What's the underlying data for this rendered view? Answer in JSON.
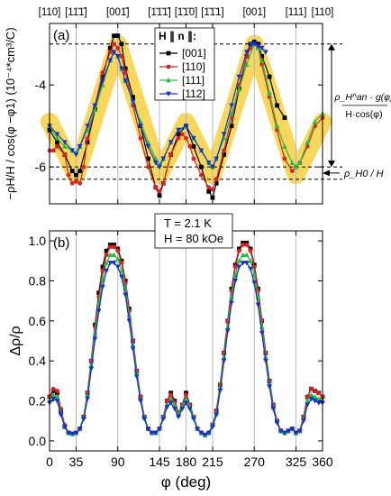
{
  "chart_data": [
    {
      "type": "line",
      "panel_label": "(a)",
      "ylabel": "−ρH/H / cos(φ −φ1) (10⁻⁴*cm³/C)",
      "ylim": [
        -6.9,
        -2.5
      ],
      "xlim": [
        0,
        360
      ],
      "y_ticks": [
        -4,
        -6
      ],
      "x_ticks": [
        0,
        35,
        90,
        145,
        180,
        215,
        270,
        325,
        360
      ],
      "top_direction_labels": [
        "[110]",
        "[11̄1̄]",
        "[001̄]",
        "[1̄1̄1̄]",
        "[1̄1̄0]",
        "[1̄1̄1]",
        "[001]",
        "[111]",
        "[110]"
      ],
      "top_direction_positions": [
        0,
        35,
        90,
        145,
        180,
        215,
        270,
        325,
        360
      ],
      "legend_title": "H ∥ n ∥:",
      "legend_position": "top-center",
      "series": [
        {
          "name": "[001]",
          "color": "#000000",
          "marker": "square",
          "x": [
            0,
            10,
            20,
            30,
            35,
            40,
            50,
            60,
            70,
            80,
            85,
            90,
            95,
            100,
            110,
            120,
            130,
            140,
            145,
            150,
            160,
            170,
            180,
            190,
            200,
            210,
            215,
            220,
            230,
            240,
            250,
            260,
            265,
            270,
            275,
            280,
            290,
            300,
            310
          ],
          "y": [
            -5.1,
            -5.4,
            -5.7,
            -6.1,
            -6.2,
            -6.1,
            -5.4,
            -4.6,
            -3.8,
            -3.1,
            -2.8,
            -2.8,
            -3.0,
            -3.6,
            -4.3,
            -5.0,
            -5.8,
            -6.5,
            -6.7,
            -6.4,
            -5.7,
            -5.2,
            -5.0,
            -5.5,
            -6.0,
            -6.6,
            -6.75,
            -6.4,
            -5.7,
            -5.0,
            -4.1,
            -3.3,
            -3.0,
            -2.95,
            -3.0,
            -3.3,
            -3.8,
            -4.5,
            -4.8
          ]
        },
        {
          "name": "[110]",
          "color": "#e02020",
          "marker": "circle",
          "x": [
            0,
            5,
            10,
            20,
            25,
            30,
            35,
            40,
            45,
            50,
            60,
            70,
            80,
            85,
            90,
            95,
            100,
            110,
            120,
            130,
            140,
            145,
            150,
            160,
            170,
            175,
            180,
            185,
            190,
            200,
            210,
            215,
            220,
            230,
            240,
            250,
            260,
            265,
            270,
            275,
            280,
            290,
            300,
            310,
            320,
            325,
            330,
            340,
            350,
            360
          ],
          "y": [
            -5.6,
            -5.6,
            -5.5,
            -5.7,
            -6.2,
            -6.4,
            -6.35,
            -6.4,
            -6.0,
            -5.3,
            -4.5,
            -3.7,
            -3.2,
            -3.0,
            -3.1,
            -3.3,
            -3.7,
            -4.5,
            -5.3,
            -6.0,
            -6.5,
            -6.6,
            -6.4,
            -5.7,
            -5.3,
            -5.2,
            -5.3,
            -5.5,
            -5.8,
            -6.2,
            -6.5,
            -6.55,
            -6.3,
            -5.6,
            -4.8,
            -4.0,
            -3.3,
            -3.1,
            -3.0,
            -3.1,
            -3.5,
            -4.3,
            -5.1,
            -5.8,
            -6.1,
            -6.0,
            -5.9,
            -5.5,
            -5.0,
            -4.8
          ]
        },
        {
          "name": "[111]",
          "color": "#20c040",
          "marker": "triangle-up",
          "x": [
            0,
            10,
            20,
            30,
            35,
            40,
            50,
            60,
            70,
            80,
            85,
            90,
            95,
            100,
            110,
            120,
            130,
            140,
            145,
            150,
            160,
            170,
            180,
            190,
            200,
            210,
            215,
            220,
            230,
            240,
            250,
            260,
            270,
            275,
            280,
            290,
            300,
            310,
            320,
            325,
            330,
            340,
            350,
            360
          ],
          "y": [
            -5.0,
            -5.3,
            -5.5,
            -5.6,
            -5.65,
            -5.5,
            -5.1,
            -4.6,
            -4.0,
            -3.4,
            -3.2,
            -3.3,
            -3.6,
            -3.9,
            -4.4,
            -4.9,
            -5.4,
            -5.8,
            -5.95,
            -5.8,
            -5.4,
            -5.1,
            -5.0,
            -5.3,
            -5.6,
            -5.9,
            -6.0,
            -5.8,
            -5.3,
            -4.7,
            -4.1,
            -3.5,
            -3.0,
            -3.1,
            -3.4,
            -4.2,
            -5.0,
            -5.5,
            -5.9,
            -6.0,
            -5.9,
            -5.4,
            -4.9,
            -4.7
          ]
        },
        {
          "name": "[112]",
          "color": "#1530d0",
          "marker": "triangle-down",
          "x": [
            0,
            10,
            20,
            30,
            35,
            40,
            50,
            60,
            70,
            80,
            85,
            90,
            95,
            100,
            110,
            120,
            130,
            140,
            145,
            150,
            160,
            170,
            180,
            190,
            200,
            210,
            215,
            220,
            230,
            240,
            250,
            260,
            265,
            270,
            275,
            280,
            285
          ],
          "y": [
            -5.0,
            -5.2,
            -5.4,
            -5.6,
            -5.7,
            -5.5,
            -5.0,
            -4.5,
            -3.9,
            -3.4,
            -3.2,
            -3.3,
            -3.6,
            -3.9,
            -4.4,
            -5.0,
            -5.5,
            -5.9,
            -6.0,
            -5.8,
            -5.4,
            -5.1,
            -5.0,
            -5.3,
            -5.6,
            -5.9,
            -6.0,
            -5.8,
            -5.2,
            -4.5,
            -3.8,
            -3.2,
            -3.0,
            -3.0,
            -3.05,
            -3.1,
            -3.2
          ]
        }
      ],
      "highlight_band": {
        "color": "#f7d040",
        "x": [
          0,
          35,
          90,
          145,
          180,
          215,
          270,
          325,
          360
        ],
        "y": [
          -4.9,
          -6.2,
          -3.0,
          -6.2,
          -4.9,
          -6.2,
          -3.0,
          -6.2,
          -4.9
        ]
      },
      "dashed_lines_y": [
        -3.0,
        -6.0,
        -6.3
      ],
      "annotations": {
        "top_bracket": "ρ_H^an · g(φ)",
        "bottom_bracket": "H·cos(φ)",
        "arrow_label": "ρ_H0 / H"
      }
    },
    {
      "type": "line",
      "panel_label": "(b)",
      "ylabel": "Δρ/ρ",
      "xlabel": "φ (deg)",
      "ylim": [
        -0.05,
        1.05
      ],
      "xlim": [
        0,
        360
      ],
      "y_ticks": [
        0.0,
        0.2,
        0.4,
        0.6,
        0.8,
        1.0
      ],
      "x_ticks": [
        0,
        35,
        90,
        145,
        180,
        215,
        270,
        325,
        360
      ],
      "x": [
        0,
        5,
        10,
        15,
        20,
        25,
        30,
        35,
        40,
        45,
        50,
        55,
        60,
        65,
        70,
        75,
        80,
        85,
        90,
        95,
        100,
        105,
        110,
        115,
        120,
        125,
        130,
        135,
        140,
        145,
        150,
        155,
        160,
        165,
        170,
        175,
        180,
        185,
        190,
        195,
        200,
        205,
        210,
        215,
        220,
        225,
        230,
        235,
        240,
        245,
        250,
        255,
        260,
        265,
        270,
        275,
        280,
        285,
        290,
        295,
        300,
        305,
        310,
        315,
        320,
        325,
        330,
        335,
        340,
        345,
        350,
        355,
        360
      ],
      "series": [
        {
          "name": "[001]",
          "color": "#000000",
          "y": [
            0.22,
            0.25,
            0.24,
            0.15,
            0.07,
            0.04,
            0.035,
            0.04,
            0.06,
            0.12,
            0.24,
            0.4,
            0.58,
            0.74,
            0.87,
            0.95,
            0.98,
            0.98,
            0.96,
            0.9,
            0.8,
            0.66,
            0.5,
            0.35,
            0.22,
            0.12,
            0.06,
            0.04,
            0.04,
            0.06,
            0.12,
            0.2,
            0.24,
            0.2,
            0.14,
            0.18,
            0.24,
            0.18,
            0.12,
            0.06,
            0.04,
            0.03,
            0.04,
            0.08,
            0.15,
            0.28,
            0.44,
            0.6,
            0.76,
            0.88,
            0.96,
            0.99,
            0.99,
            0.96,
            0.88,
            0.76,
            0.6,
            0.44,
            0.3,
            0.18,
            0.1,
            0.05,
            0.04,
            0.05,
            0.06,
            0.04,
            0.05,
            0.12,
            0.22,
            0.26,
            0.25,
            0.24,
            0.22
          ]
        },
        {
          "name": "[110]",
          "color": "#e02020",
          "y": [
            0.22,
            0.26,
            0.25,
            0.16,
            0.08,
            0.04,
            0.035,
            0.04,
            0.06,
            0.12,
            0.24,
            0.4,
            0.57,
            0.72,
            0.85,
            0.93,
            0.97,
            0.97,
            0.95,
            0.89,
            0.79,
            0.65,
            0.5,
            0.35,
            0.22,
            0.12,
            0.06,
            0.04,
            0.04,
            0.06,
            0.12,
            0.2,
            0.23,
            0.19,
            0.14,
            0.18,
            0.23,
            0.18,
            0.12,
            0.06,
            0.04,
            0.03,
            0.04,
            0.08,
            0.15,
            0.28,
            0.44,
            0.6,
            0.75,
            0.87,
            0.95,
            0.98,
            0.98,
            0.95,
            0.87,
            0.75,
            0.6,
            0.44,
            0.3,
            0.18,
            0.1,
            0.05,
            0.04,
            0.05,
            0.06,
            0.04,
            0.05,
            0.12,
            0.22,
            0.26,
            0.25,
            0.24,
            0.22
          ]
        },
        {
          "name": "[111]",
          "color": "#20c040",
          "y": [
            0.2,
            0.23,
            0.22,
            0.14,
            0.07,
            0.04,
            0.035,
            0.04,
            0.06,
            0.12,
            0.23,
            0.38,
            0.54,
            0.69,
            0.81,
            0.89,
            0.93,
            0.93,
            0.91,
            0.85,
            0.76,
            0.63,
            0.48,
            0.34,
            0.21,
            0.12,
            0.06,
            0.04,
            0.04,
            0.06,
            0.12,
            0.18,
            0.21,
            0.18,
            0.13,
            0.17,
            0.21,
            0.17,
            0.12,
            0.06,
            0.04,
            0.03,
            0.04,
            0.08,
            0.14,
            0.27,
            0.42,
            0.57,
            0.72,
            0.83,
            0.9,
            0.93,
            0.93,
            0.9,
            0.83,
            0.72,
            0.57,
            0.42,
            0.29,
            0.17,
            0.1,
            0.05,
            0.04,
            0.05,
            0.06,
            0.04,
            0.05,
            0.11,
            0.2,
            0.23,
            0.22,
            0.21,
            0.2
          ]
        },
        {
          "name": "[112]",
          "color": "#1530d0",
          "y": [
            0.19,
            0.21,
            0.2,
            0.13,
            0.07,
            0.04,
            0.035,
            0.04,
            0.06,
            0.11,
            0.21,
            0.36,
            0.51,
            0.65,
            0.77,
            0.85,
            0.89,
            0.89,
            0.87,
            0.82,
            0.73,
            0.6,
            0.46,
            0.32,
            0.2,
            0.11,
            0.06,
            0.04,
            0.04,
            0.06,
            0.11,
            0.17,
            0.19,
            0.16,
            0.12,
            0.16,
            0.19,
            0.16,
            0.11,
            0.06,
            0.04,
            0.03,
            0.04,
            0.07,
            0.13,
            0.25,
            0.4,
            0.55,
            0.69,
            0.8,
            0.87,
            0.89,
            0.89,
            0.86,
            0.79,
            0.68,
            0.54,
            0.4,
            0.27,
            0.16,
            0.09,
            0.05,
            0.04,
            0.05,
            0.06,
            0.04,
            0.05,
            0.1,
            0.18,
            0.21,
            0.2,
            0.19,
            0.19
          ]
        }
      ],
      "info_box": [
        "T = 2.1 K",
        "H = 80 kOe"
      ]
    }
  ]
}
